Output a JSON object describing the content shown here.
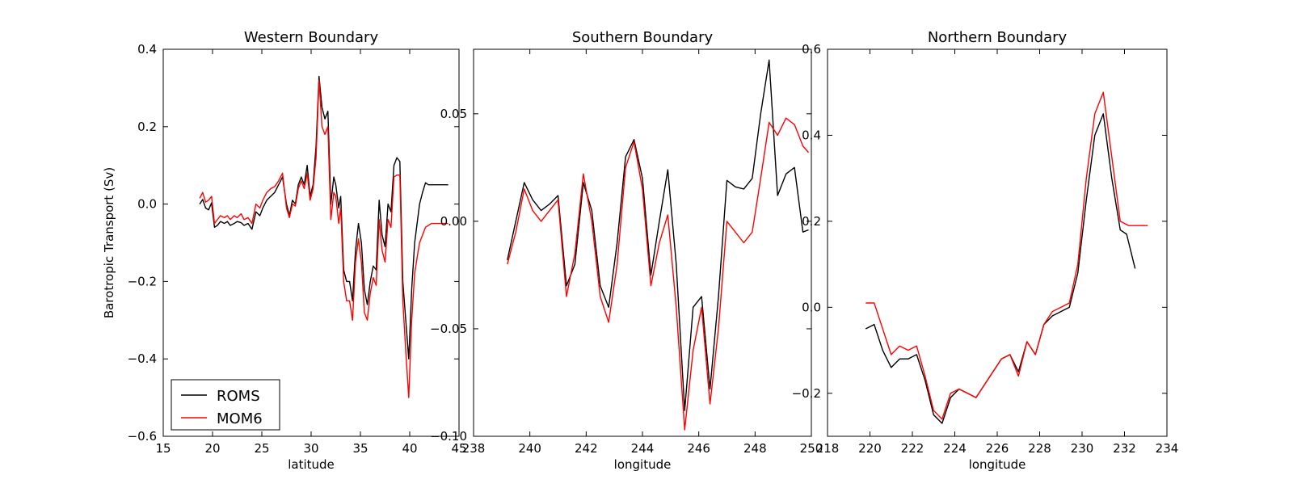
{
  "chart_data": [
    {
      "type": "line",
      "title": "Western Boundary",
      "xlabel": "latitude",
      "ylabel": "Barotropic Transport (Sv)",
      "xlim": [
        15,
        45
      ],
      "ylim": [
        -0.6,
        0.4
      ],
      "xticks": [
        "15",
        "20",
        "25",
        "30",
        "35",
        "40",
        "45"
      ],
      "yticks": [
        "−0.6",
        "−0.4",
        "−0.2",
        "0.0",
        "0.2",
        "0.4"
      ],
      "legend": {
        "location": "lower-left",
        "entries": [
          "ROMS",
          "MOM6"
        ]
      },
      "series": [
        {
          "name": "ROMS",
          "color": "#000000",
          "x": [
            18.7,
            19.0,
            19.3,
            19.6,
            19.9,
            20.2,
            20.5,
            20.8,
            21.2,
            21.5,
            21.8,
            22.2,
            22.5,
            22.9,
            23.2,
            23.6,
            24.0,
            24.4,
            24.8,
            25.1,
            25.5,
            25.9,
            26.3,
            26.7,
            27.1,
            27.5,
            27.8,
            28.1,
            28.4,
            28.7,
            29.0,
            29.3,
            29.6,
            29.9,
            30.2,
            30.5,
            30.8,
            31.1,
            31.4,
            31.7,
            32.0,
            32.3,
            32.5,
            32.8,
            33.0,
            33.3,
            33.6,
            33.9,
            34.2,
            34.5,
            34.8,
            35.1,
            35.4,
            35.7,
            36.0,
            36.3,
            36.6,
            36.9,
            37.2,
            37.5,
            37.8,
            38.1,
            38.4,
            38.7,
            39.0,
            39.3,
            39.6,
            39.9,
            40.2,
            40.5,
            40.8,
            41.0,
            41.3,
            41.6,
            41.9,
            42.2,
            42.5,
            42.8,
            43.1,
            43.4,
            43.7,
            43.9
          ],
          "y": [
            0.0,
            0.012,
            -0.01,
            -0.015,
            0.003,
            -0.06,
            -0.055,
            -0.045,
            -0.05,
            -0.045,
            -0.055,
            -0.05,
            -0.045,
            -0.048,
            -0.055,
            -0.05,
            -0.065,
            -0.02,
            -0.03,
            -0.01,
            0.01,
            0.02,
            0.03,
            0.05,
            0.07,
            0.0,
            -0.03,
            0.01,
            0.0,
            0.05,
            0.07,
            0.05,
            0.1,
            0.02,
            0.05,
            0.15,
            0.33,
            0.25,
            0.22,
            0.24,
            0.0,
            0.07,
            0.05,
            -0.01,
            0.02,
            -0.17,
            -0.2,
            -0.2,
            -0.25,
            -0.12,
            -0.05,
            -0.1,
            -0.22,
            -0.26,
            -0.2,
            -0.16,
            -0.17,
            0.01,
            -0.08,
            -0.11,
            0.0,
            -0.02,
            0.1,
            0.12,
            0.11,
            -0.2,
            -0.3,
            -0.4,
            -0.22,
            -0.1,
            -0.04,
            0.0,
            0.03,
            0.055,
            0.05,
            0.05,
            0.05,
            0.05,
            0.05,
            0.05,
            0.05,
            0.05
          ]
        },
        {
          "name": "MOM6",
          "color": "#ff0000",
          "x": [
            18.7,
            19.0,
            19.3,
            19.6,
            19.9,
            20.2,
            20.5,
            20.8,
            21.2,
            21.5,
            21.8,
            22.2,
            22.5,
            22.9,
            23.2,
            23.6,
            24.0,
            24.4,
            24.8,
            25.1,
            25.5,
            25.9,
            26.3,
            26.7,
            27.1,
            27.5,
            27.8,
            28.1,
            28.4,
            28.7,
            29.0,
            29.3,
            29.6,
            29.9,
            30.2,
            30.5,
            30.8,
            31.1,
            31.4,
            31.7,
            32.0,
            32.3,
            32.5,
            32.8,
            33.0,
            33.3,
            33.6,
            33.9,
            34.2,
            34.5,
            34.8,
            35.1,
            35.4,
            35.7,
            36.0,
            36.3,
            36.6,
            36.9,
            37.2,
            37.5,
            37.8,
            38.1,
            38.4,
            38.7,
            39.0,
            39.3,
            39.6,
            39.9,
            40.2,
            40.5,
            40.8,
            41.0,
            41.3,
            41.6,
            41.9,
            42.2,
            42.5,
            42.8,
            43.1,
            43.4,
            43.7,
            43.9
          ],
          "y": [
            0.015,
            0.03,
            0.005,
            0.01,
            0.02,
            -0.05,
            -0.04,
            -0.03,
            -0.035,
            -0.03,
            -0.04,
            -0.03,
            -0.035,
            -0.025,
            -0.04,
            -0.035,
            -0.05,
            0.0,
            -0.01,
            0.01,
            0.03,
            0.04,
            0.045,
            0.06,
            0.08,
            -0.01,
            -0.035,
            0.0,
            -0.005,
            0.04,
            0.06,
            0.04,
            0.08,
            0.01,
            0.04,
            0.12,
            0.32,
            0.2,
            0.18,
            0.2,
            -0.04,
            0.03,
            0.02,
            -0.05,
            -0.01,
            -0.2,
            -0.25,
            -0.25,
            -0.3,
            -0.15,
            -0.09,
            -0.15,
            -0.28,
            -0.3,
            -0.23,
            -0.19,
            -0.21,
            -0.04,
            -0.12,
            -0.15,
            -0.04,
            -0.06,
            0.07,
            0.075,
            0.075,
            -0.25,
            -0.38,
            -0.5,
            -0.3,
            -0.18,
            -0.13,
            -0.1,
            -0.08,
            -0.06,
            -0.055,
            -0.05,
            -0.05,
            -0.05,
            -0.05,
            -0.05,
            -0.05,
            -0.05
          ]
        }
      ]
    },
    {
      "type": "line",
      "title": "Southern Boundary",
      "xlabel": "longitude",
      "ylabel": "",
      "xlim": [
        238,
        250
      ],
      "ylim": [
        -0.1,
        0.08
      ],
      "xticks": [
        "238",
        "240",
        "242",
        "244",
        "246",
        "248",
        "250"
      ],
      "yticks": [
        "−0.10",
        "−0.05",
        "0.00",
        "0.05"
      ],
      "series": [
        {
          "name": "ROMS",
          "color": "#000000",
          "x": [
            239.2,
            239.5,
            239.8,
            240.1,
            240.4,
            240.7,
            241.0,
            241.3,
            241.6,
            241.9,
            242.2,
            242.5,
            242.8,
            243.1,
            243.4,
            243.7,
            244.0,
            244.3,
            244.6,
            244.9,
            245.2,
            245.5,
            245.8,
            246.1,
            246.4,
            246.7,
            247.0,
            247.3,
            247.6,
            247.9,
            248.2,
            248.5,
            248.8,
            249.1,
            249.4,
            249.7,
            249.9
          ],
          "y": [
            -0.018,
            0.0,
            0.018,
            0.01,
            0.005,
            0.008,
            0.012,
            -0.03,
            -0.02,
            0.018,
            0.005,
            -0.03,
            -0.04,
            -0.01,
            0.03,
            0.038,
            0.02,
            -0.025,
            0.0,
            0.024,
            -0.02,
            -0.088,
            -0.04,
            -0.035,
            -0.078,
            -0.035,
            0.019,
            0.016,
            0.015,
            0.02,
            0.05,
            0.075,
            0.012,
            0.022,
            0.025,
            -0.005,
            -0.004
          ]
        },
        {
          "name": "MOM6",
          "color": "#ff0000",
          "x": [
            239.2,
            239.5,
            239.8,
            240.1,
            240.4,
            240.7,
            241.0,
            241.3,
            241.6,
            241.9,
            242.2,
            242.5,
            242.8,
            243.1,
            243.4,
            243.7,
            244.0,
            244.3,
            244.6,
            244.9,
            245.2,
            245.5,
            245.8,
            246.1,
            246.4,
            246.7,
            247.0,
            247.3,
            247.6,
            247.9,
            248.2,
            248.5,
            248.8,
            249.1,
            249.4,
            249.7,
            249.9
          ],
          "y": [
            -0.02,
            -0.005,
            0.015,
            0.005,
            0.0,
            0.005,
            0.01,
            -0.035,
            -0.015,
            0.022,
            0.0,
            -0.035,
            -0.047,
            -0.02,
            0.025,
            0.037,
            0.015,
            -0.03,
            -0.01,
            0.003,
            -0.04,
            -0.097,
            -0.06,
            -0.04,
            -0.085,
            -0.05,
            0.0,
            -0.005,
            -0.01,
            -0.005,
            0.02,
            0.046,
            0.04,
            0.048,
            0.045,
            0.035,
            0.032
          ]
        }
      ]
    },
    {
      "type": "line",
      "title": "Northern Boundary",
      "xlabel": "longitude",
      "ylabel": "",
      "xlim": [
        218,
        234
      ],
      "ylim": [
        -0.3,
        0.6
      ],
      "xticks": [
        "218",
        "220",
        "222",
        "224",
        "226",
        "228",
        "230",
        "232",
        "234"
      ],
      "yticks": [
        "−0.2",
        "0.0",
        "0.2",
        "0.4",
        "0.6"
      ],
      "series": [
        {
          "name": "ROMS",
          "color": "#000000",
          "x": [
            219.8,
            220.2,
            220.6,
            221.0,
            221.4,
            221.8,
            222.2,
            222.6,
            223.0,
            223.4,
            223.8,
            224.2,
            224.6,
            225.0,
            225.4,
            225.8,
            226.2,
            226.6,
            227.0,
            227.4,
            227.8,
            228.2,
            228.6,
            229.0,
            229.4,
            229.8,
            230.2,
            230.6,
            231.0,
            231.4,
            231.8,
            232.1,
            232.5
          ],
          "y": [
            -0.05,
            -0.04,
            -0.1,
            -0.14,
            -0.12,
            -0.12,
            -0.11,
            -0.17,
            -0.25,
            -0.27,
            -0.21,
            -0.19,
            -0.2,
            -0.21,
            -0.18,
            -0.15,
            -0.12,
            -0.11,
            -0.15,
            -0.08,
            -0.11,
            -0.04,
            -0.02,
            -0.01,
            0.0,
            0.08,
            0.25,
            0.4,
            0.45,
            0.3,
            0.18,
            0.17,
            0.09
          ]
        },
        {
          "name": "MOM6",
          "color": "#ff0000",
          "x": [
            219.8,
            220.2,
            220.6,
            221.0,
            221.4,
            221.8,
            222.2,
            222.6,
            223.0,
            223.4,
            223.8,
            224.2,
            224.6,
            225.0,
            225.4,
            225.8,
            226.2,
            226.6,
            227.0,
            227.4,
            227.8,
            228.2,
            228.6,
            229.0,
            229.4,
            229.8,
            230.2,
            230.6,
            231.0,
            231.4,
            231.8,
            232.2,
            232.6,
            233.1
          ],
          "y": [
            0.01,
            0.01,
            -0.05,
            -0.11,
            -0.09,
            -0.1,
            -0.09,
            -0.16,
            -0.24,
            -0.26,
            -0.2,
            -0.19,
            -0.2,
            -0.21,
            -0.18,
            -0.15,
            -0.12,
            -0.11,
            -0.16,
            -0.08,
            -0.11,
            -0.04,
            -0.01,
            0.0,
            0.01,
            0.1,
            0.3,
            0.45,
            0.5,
            0.35,
            0.2,
            0.19,
            0.19,
            0.19
          ]
        }
      ]
    }
  ]
}
